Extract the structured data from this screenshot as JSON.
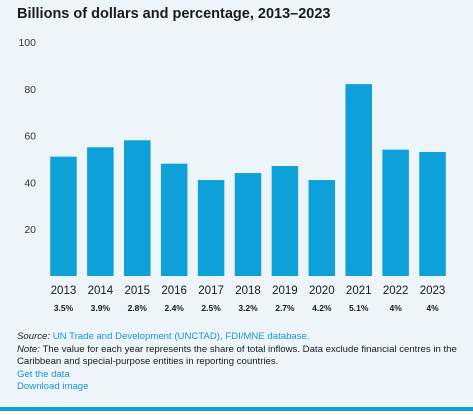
{
  "title": "Billions of dollars and percentage, 2013–2023",
  "colors": {
    "bar": "#0ea0d8",
    "panel": "#edf5fb",
    "link": "#1a95cf",
    "rule": "#0ea0d8"
  },
  "chart_data": {
    "type": "bar",
    "categories": [
      "2013",
      "2014",
      "2015",
      "2016",
      "2017",
      "2018",
      "2019",
      "2020",
      "2021",
      "2022",
      "2023"
    ],
    "values": [
      51,
      55,
      58,
      48,
      41,
      44,
      47,
      41,
      82,
      54,
      53
    ],
    "share_labels": [
      "3.5%",
      "3.9%",
      "2.8%",
      "2.4%",
      "2.5%",
      "3.2%",
      "2.7%",
      "4.2%",
      "5.1%",
      "4%",
      "4%"
    ],
    "yticks": [
      20,
      40,
      60,
      80,
      100
    ],
    "ylim": [
      0,
      100
    ],
    "grid": false
  },
  "footer": {
    "source_label": "Source:",
    "source_link": "UN Trade and Development (UNCTAD), FDI/MNE database.",
    "note_label": "Note:",
    "note_text": "The value for each year represents the share of total inflows. Data exclude financial centres in the Caribbean and special-purpose entities in reporting countries.",
    "get_data": "Get the data",
    "download": "Download image"
  }
}
